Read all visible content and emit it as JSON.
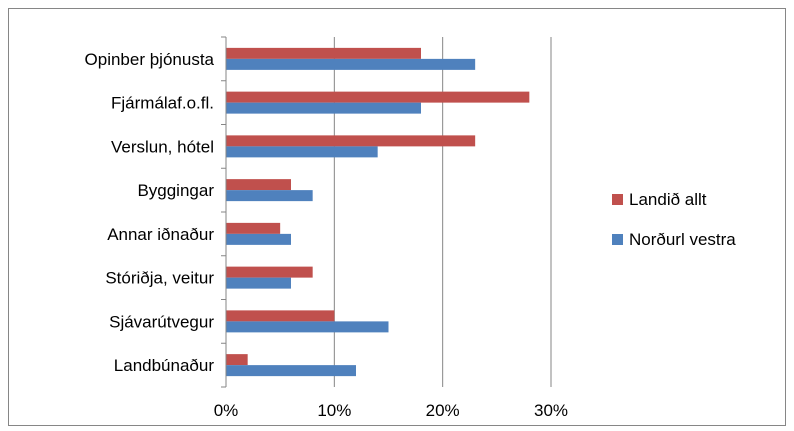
{
  "chart_data": {
    "type": "bar",
    "orientation": "horizontal",
    "title": "",
    "xlabel": "",
    "ylabel": "",
    "categories": [
      "Opinber þjónusta",
      "Fjármálaf.o.fl.",
      "Verslun, hótel",
      "Byggingar",
      "Annar iðnaður",
      "Stóriðja, veitur",
      "Sjávarútvegur",
      "Landbúnaður"
    ],
    "series": [
      {
        "name": "Landið allt",
        "color": "#C0504D",
        "values": [
          18,
          28,
          23,
          6,
          5,
          8,
          10,
          2
        ]
      },
      {
        "name": "Norðurl vestra",
        "color": "#4F81BD",
        "values": [
          23,
          18,
          14,
          8,
          6,
          6,
          15,
          12
        ]
      }
    ],
    "xlim": [
      0,
      30
    ],
    "xticks": [
      0,
      10,
      20,
      30
    ],
    "tick_labels": [
      "0%",
      "10%",
      "20%",
      "30%"
    ],
    "grid": true,
    "legend": "right"
  }
}
